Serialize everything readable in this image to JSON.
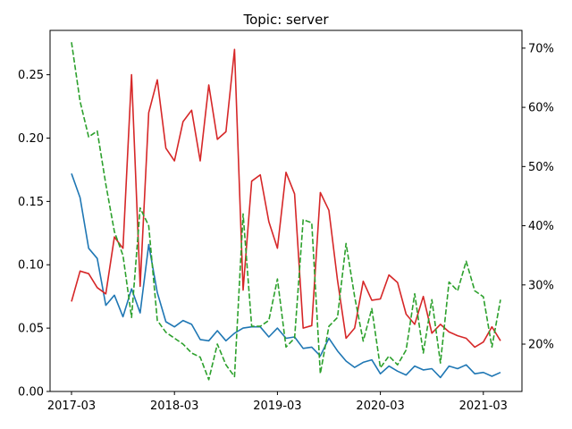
{
  "chart_data": {
    "type": "line",
    "title": "Topic: server",
    "xlabel": "",
    "ylabel": "",
    "y2label": "",
    "x_ticks": [
      "2017-03",
      "2018-03",
      "2019-03",
      "2020-03",
      "2021-03"
    ],
    "y_ticks": [
      "0.00",
      "0.05",
      "0.10",
      "0.15",
      "0.20",
      "0.25"
    ],
    "y2_ticks": [
      "20%",
      "30%",
      "40%",
      "50%",
      "60%",
      "70%"
    ],
    "ylim": [
      0,
      0.285
    ],
    "y2lim": [
      0.12,
      0.73
    ],
    "x_start": "2017-03",
    "grid": false,
    "series": [
      {
        "axis": "left",
        "color": "#1f77b4",
        "style": "solid",
        "values": [
          0.172,
          0.153,
          0.113,
          0.105,
          0.068,
          0.076,
          0.059,
          0.081,
          0.062,
          0.116,
          0.078,
          0.055,
          0.051,
          0.056,
          0.053,
          0.041,
          0.04,
          0.048,
          0.04,
          0.046,
          0.05,
          0.051,
          0.051,
          0.043,
          0.05,
          0.042,
          0.043,
          0.034,
          0.035,
          0.028,
          0.042,
          0.032,
          0.024,
          0.019,
          0.023,
          0.025,
          0.014,
          0.02,
          0.016,
          0.013,
          0.02,
          0.017,
          0.018,
          0.011,
          0.02,
          0.018,
          0.021,
          0.014,
          0.015,
          0.012,
          0.015
        ]
      },
      {
        "axis": "left",
        "color": "#d62728",
        "style": "solid",
        "values": [
          0.071,
          0.095,
          0.093,
          0.082,
          0.077,
          0.122,
          0.113,
          0.25,
          0.083,
          0.22,
          0.246,
          0.192,
          0.182,
          0.213,
          0.222,
          0.182,
          0.242,
          0.199,
          0.205,
          0.27,
          0.08,
          0.166,
          0.171,
          0.134,
          0.113,
          0.173,
          0.156,
          0.05,
          0.052,
          0.157,
          0.143,
          0.088,
          0.042,
          0.05,
          0.087,
          0.072,
          0.073,
          0.092,
          0.086,
          0.061,
          0.053,
          0.075,
          0.046,
          0.053,
          0.047,
          0.044,
          0.042,
          0.035,
          0.039,
          0.051,
          0.04
        ]
      },
      {
        "axis": "right",
        "color": "#2ca02c",
        "style": "dashed",
        "values": [
          0.71,
          0.61,
          0.55,
          0.56,
          0.47,
          0.39,
          0.35,
          0.245,
          0.43,
          0.4,
          0.24,
          0.22,
          0.21,
          0.2,
          0.185,
          0.178,
          0.14,
          0.2,
          0.165,
          0.145,
          0.42,
          0.23,
          0.23,
          0.24,
          0.31,
          0.195,
          0.21,
          0.41,
          0.405,
          0.15,
          0.23,
          0.245,
          0.37,
          0.28,
          0.205,
          0.26,
          0.16,
          0.18,
          0.165,
          0.19,
          0.285,
          0.185,
          0.275,
          0.168,
          0.305,
          0.29,
          0.34,
          0.29,
          0.28,
          0.195,
          0.275
        ]
      }
    ]
  }
}
